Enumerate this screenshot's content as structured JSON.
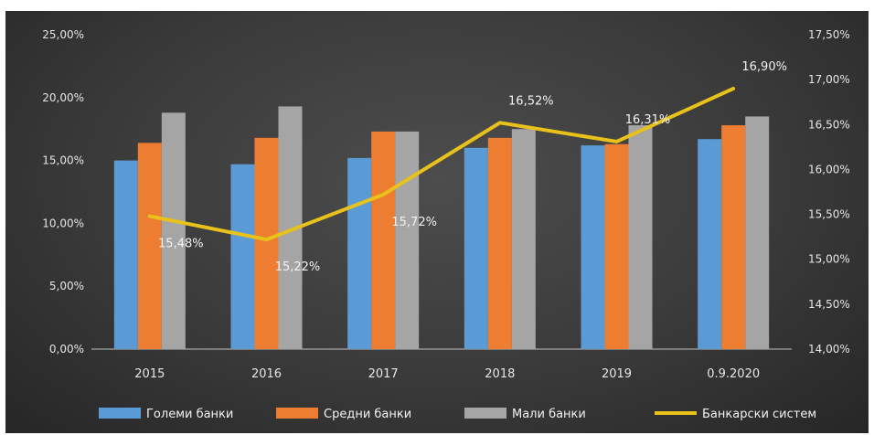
{
  "chart_data": {
    "type": "bar",
    "categories": [
      "2015",
      "2016",
      "2017",
      "2018",
      "2019",
      "0.9.2020"
    ],
    "series": [
      {
        "name": "Големи банки",
        "kind": "bar",
        "axis": "left",
        "color": "#5b9bd5",
        "values": [
          15.0,
          14.7,
          15.2,
          16.0,
          16.2,
          16.7
        ]
      },
      {
        "name": "Средни банки",
        "kind": "bar",
        "axis": "left",
        "color": "#ed7d31",
        "values": [
          16.4,
          16.8,
          17.3,
          16.8,
          16.3,
          17.8
        ]
      },
      {
        "name": "Мали банки",
        "kind": "bar",
        "axis": "left",
        "color": "#a5a5a5",
        "values": [
          18.8,
          19.3,
          17.3,
          17.5,
          17.8,
          18.5
        ]
      },
      {
        "name": "Банкарски систем",
        "kind": "line",
        "axis": "right",
        "color": "#e8c21a",
        "values": [
          15.48,
          15.22,
          15.72,
          16.52,
          16.31,
          16.9
        ],
        "labels": [
          "15,48%",
          "15,22%",
          "15,72%",
          "16,52%",
          "16,31%",
          "16,90%"
        ]
      }
    ],
    "y_left": {
      "ylim": [
        0,
        25
      ],
      "ticks": [
        0,
        5,
        10,
        15,
        20,
        25
      ],
      "tick_labels": [
        "0,00%",
        "5,00%",
        "10,00%",
        "15,00%",
        "20,00%",
        "25,00%"
      ]
    },
    "y_right": {
      "ylim": [
        14,
        17.5
      ],
      "ticks": [
        14,
        14.5,
        15,
        15.5,
        16,
        16.5,
        17,
        17.5
      ],
      "tick_labels": [
        "14,00%",
        "14,50%",
        "15,00%",
        "15,50%",
        "16,00%",
        "16,50%",
        "17,00%",
        "17,50%"
      ]
    },
    "grid": false,
    "legend_position": "bottom",
    "title": "",
    "xlabel": "",
    "ylabel": ""
  }
}
